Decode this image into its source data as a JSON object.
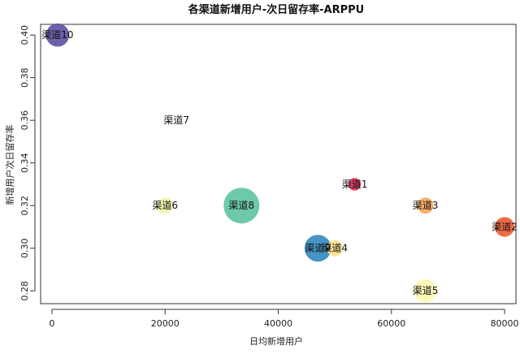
{
  "chart_data": {
    "type": "scatter",
    "title": "各渠道新增用户-次日留存率-ARPPU",
    "xlabel": "日均新增用户",
    "ylabel": "新增用户次日留存率",
    "xlim": [
      -2000,
      82000
    ],
    "ylim": [
      0.274,
      0.405
    ],
    "xticks": [
      0,
      20000,
      40000,
      60000,
      80000
    ],
    "yticks": [
      0.28,
      0.3,
      0.32,
      0.34,
      0.36,
      0.38,
      0.4
    ],
    "xtick_labels": [
      "0",
      "20000",
      "40000",
      "60000",
      "80000"
    ],
    "ytick_labels": [
      "0.28",
      "0.30",
      "0.32",
      "0.34",
      "0.36",
      "0.38",
      "0.40"
    ],
    "grid": false,
    "points": [
      {
        "label": "渠道1",
        "x": 53500,
        "y": 0.33,
        "size": 0.35,
        "color": "#d7264a"
      },
      {
        "label": "渠道2",
        "x": 80000,
        "y": 0.31,
        "size": 0.55,
        "color": "#ee5a33"
      },
      {
        "label": "渠道3",
        "x": 66000,
        "y": 0.32,
        "size": 0.45,
        "color": "#f7a55a"
      },
      {
        "label": "渠道4",
        "x": 50000,
        "y": 0.3,
        "size": 0.45,
        "color": "#fde08a"
      },
      {
        "label": "渠道5",
        "x": 66000,
        "y": 0.28,
        "size": 0.65,
        "color": "#fcf7b0"
      },
      {
        "label": "渠道6",
        "x": 20000,
        "y": 0.32,
        "size": 0.45,
        "color": "#eef5a6"
      },
      {
        "label": "渠道7",
        "x": 22000,
        "y": 0.36,
        "size": 0.0,
        "color": "#bfe5a0"
      },
      {
        "label": "渠道8",
        "x": 33500,
        "y": 0.32,
        "size": 1.0,
        "color": "#5ec3a0"
      },
      {
        "label": "渠道9",
        "x": 47000,
        "y": 0.3,
        "size": 0.75,
        "color": "#3288bd"
      },
      {
        "label": "渠道10",
        "x": 1000,
        "y": 0.4,
        "size": 0.65,
        "color": "#5e4fa2"
      }
    ]
  }
}
